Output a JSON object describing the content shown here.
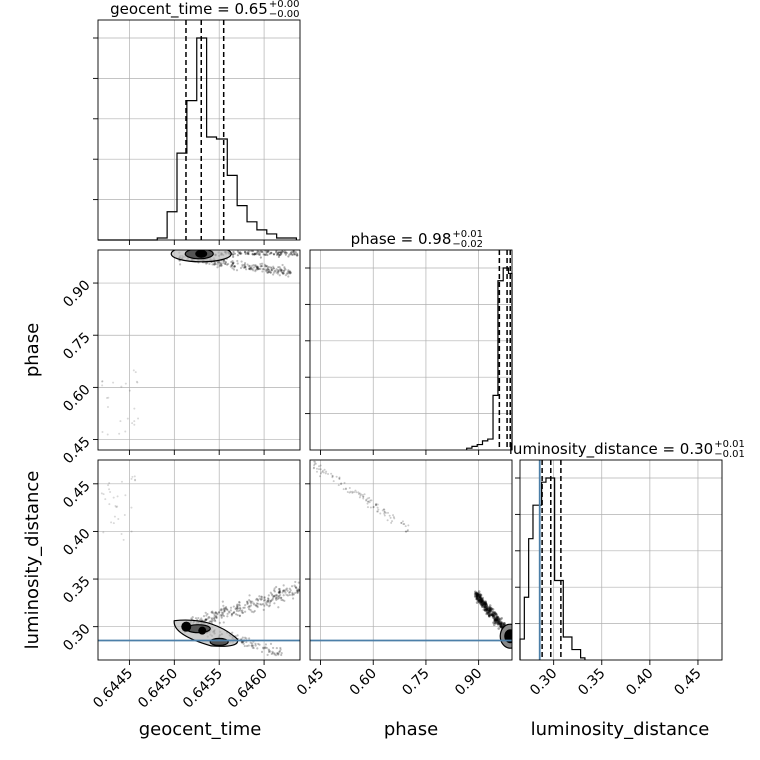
{
  "chart_data": {
    "type": "corner",
    "parameters": [
      "geocent_time",
      "phase",
      "luminosity_distance"
    ],
    "titles": [
      {
        "name": "geocent_time",
        "median": "0.65",
        "plus": "+0.00",
        "minus": "−0.00"
      },
      {
        "name": "phase",
        "median": "0.98",
        "plus": "+0.01",
        "minus": "−0.02"
      },
      {
        "name": "luminosity_distance",
        "median": "0.30",
        "plus": "+0.01",
        "minus": "−0.01"
      }
    ],
    "ranges": {
      "geocent_time": [
        0.64415,
        0.6464
      ],
      "phase": [
        0.42,
        0.995
      ],
      "luminosity_distance": [
        0.265,
        0.475
      ]
    },
    "ticks": {
      "geocent_time": [
        0.6445,
        0.645,
        0.6455,
        0.646
      ],
      "phase": [
        0.45,
        0.6,
        0.75,
        0.9
      ],
      "luminosity_distance": [
        0.3,
        0.35,
        0.4,
        0.45
      ]
    },
    "tick_labels": {
      "geocent_time": [
        "0.6445",
        "0.6450",
        "0.6455",
        "0.6460"
      ],
      "phase": [
        "0.45",
        "0.60",
        "0.75",
        "0.90"
      ],
      "luminosity_distance": [
        "0.30",
        "0.35",
        "0.40",
        "0.45"
      ]
    },
    "histograms": {
      "geocent_time": {
        "bin_edges": [
          0.64415,
          0.64426,
          0.64437,
          0.64448,
          0.64459,
          0.6447,
          0.64481,
          0.64492,
          0.64503,
          0.64514,
          0.64525,
          0.64536,
          0.64547,
          0.64559,
          0.6457,
          0.64581,
          0.64592,
          0.64603,
          0.64614,
          0.64625,
          0.64636
        ],
        "counts": [
          0,
          0,
          0,
          0,
          0,
          0,
          0.01,
          0.14,
          0.43,
          0.69,
          1.0,
          0.51,
          0.5,
          0.32,
          0.17,
          0.09,
          0.05,
          0.03,
          0.01,
          0.01
        ],
        "quantiles": [
          0.64513,
          0.6453,
          0.64555
        ]
      },
      "phase": {
        "bin_edges": [
          0.866,
          0.881,
          0.896,
          0.911,
          0.926,
          0.941,
          0.955,
          0.97,
          0.985,
          0.995
        ],
        "counts": [
          0.01,
          0.02,
          0.03,
          0.05,
          0.06,
          0.3,
          0.93,
          1.0,
          0.97
        ],
        "quantiles": [
          0.959,
          0.981,
          0.99
        ]
      },
      "luminosity_distance": {
        "bin_edges": [
          0.265,
          0.2695,
          0.274,
          0.2785,
          0.283,
          0.2875,
          0.292,
          0.2965,
          0.301,
          0.3055,
          0.31,
          0.3145,
          0.319,
          0.3235,
          0.328,
          0.3325
        ],
        "counts": [
          0.1,
          0.3,
          0.58,
          0.74,
          0.74,
          0.85,
          0.87,
          0.87,
          0.38,
          0.38,
          0.11,
          0.11,
          0.05,
          0.05,
          0.01
        ],
        "quantiles": [
          0.288,
          0.297,
          0.3075
        ]
      }
    },
    "truths": {
      "luminosity_distance": 0.2855
    },
    "colors": {
      "truth": "#4c7fa8",
      "contour": "#000000",
      "grid": "#b0b0b0"
    },
    "grid": true
  }
}
